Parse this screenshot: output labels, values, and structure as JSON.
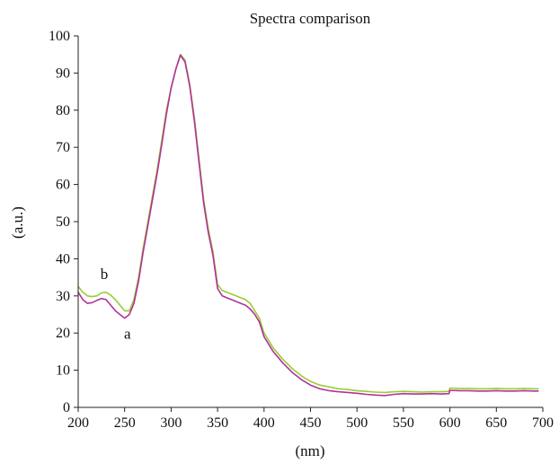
{
  "chart_data": {
    "type": "line",
    "title": "Spectra comparison",
    "xlabel": "(nm)",
    "ylabel": "(a.u.)",
    "xlim": [
      200,
      700
    ],
    "ylim": [
      0,
      100
    ],
    "xticks": [
      "200",
      "250",
      "300",
      "350",
      "400",
      "450",
      "500",
      "550",
      "600",
      "650",
      "700"
    ],
    "yticks": [
      "0",
      "10",
      "20",
      "30",
      "40",
      "50",
      "60",
      "70",
      "80",
      "90",
      "100"
    ],
    "grid": false,
    "legend": "none",
    "annotations": [
      {
        "text": "b",
        "x": 228,
        "y": 34.5
      },
      {
        "text": "a",
        "x": 253,
        "y": 18.5
      }
    ],
    "series": [
      {
        "color": "#9acd32",
        "x": [
          200,
          205,
          210,
          215,
          220,
          225,
          230,
          235,
          240,
          245,
          250,
          255,
          260,
          265,
          270,
          275,
          280,
          285,
          290,
          295,
          300,
          305,
          310,
          315,
          320,
          325,
          330,
          335,
          340,
          345,
          350,
          355,
          360,
          365,
          370,
          375,
          380,
          385,
          390,
          395,
          400,
          410,
          420,
          430,
          440,
          450,
          460,
          470,
          480,
          490,
          500,
          510,
          520,
          530,
          540,
          550,
          560,
          570,
          580,
          590,
          599,
          600,
          610,
          620,
          630,
          640,
          650,
          660,
          670,
          680,
          690,
          695
        ],
        "y": [
          32.5,
          31,
          30,
          29.8,
          30,
          30.8,
          31,
          30.2,
          29,
          27.5,
          26,
          26,
          29,
          35,
          43,
          50,
          57,
          64,
          72,
          80,
          86,
          91,
          95,
          93.5,
          87,
          78,
          67,
          56,
          48,
          42,
          33,
          31.5,
          31,
          30.5,
          30,
          29.5,
          29,
          28,
          26,
          24,
          20,
          16,
          13,
          10.5,
          8.5,
          7,
          6,
          5.5,
          5,
          4.8,
          4.5,
          4.3,
          4.1,
          4,
          4.2,
          4.3,
          4.2,
          4.1,
          4.2,
          4.2,
          4.3,
          5.2,
          5.1,
          5.1,
          5,
          5,
          5.1,
          5,
          5,
          5.1,
          5,
          5
        ]
      },
      {
        "color": "#b0339a",
        "x": [
          200,
          205,
          210,
          215,
          220,
          225,
          230,
          235,
          240,
          245,
          250,
          255,
          260,
          265,
          270,
          275,
          280,
          285,
          290,
          295,
          300,
          305,
          310,
          315,
          320,
          325,
          330,
          335,
          340,
          345,
          350,
          355,
          360,
          365,
          370,
          375,
          380,
          385,
          390,
          395,
          400,
          410,
          420,
          430,
          440,
          450,
          460,
          470,
          480,
          490,
          500,
          510,
          520,
          530,
          540,
          550,
          560,
          570,
          580,
          590,
          599,
          600,
          610,
          620,
          630,
          640,
          650,
          660,
          670,
          680,
          690,
          695
        ],
        "y": [
          31,
          29,
          28,
          28.2,
          28.8,
          29.3,
          29,
          27.5,
          26,
          25,
          24,
          25,
          28,
          34,
          42,
          49,
          56,
          63,
          71,
          79,
          86,
          91,
          94.8,
          93,
          86.5,
          77,
          66,
          55,
          47,
          41,
          32,
          30,
          29.5,
          29,
          28.5,
          28,
          27.5,
          26.5,
          25,
          23,
          19,
          15,
          12,
          9.5,
          7.5,
          6,
          5,
          4.5,
          4.2,
          4,
          3.8,
          3.5,
          3.3,
          3.2,
          3.5,
          3.7,
          3.6,
          3.6,
          3.7,
          3.6,
          3.7,
          4.6,
          4.5,
          4.5,
          4.4,
          4.4,
          4.5,
          4.4,
          4.4,
          4.5,
          4.4,
          4.4
        ]
      }
    ]
  }
}
